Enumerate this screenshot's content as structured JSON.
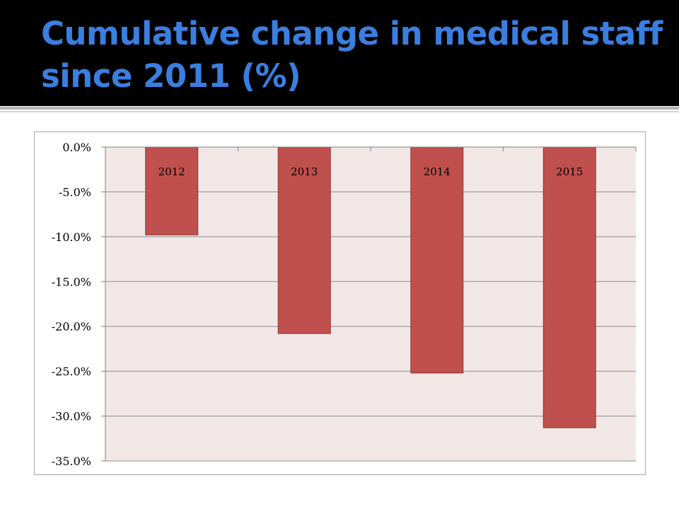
{
  "slide": {
    "title": "Cumulative change in medical staff since 2011 (%)"
  },
  "chart_data": {
    "type": "bar",
    "categories": [
      "2012",
      "2013",
      "2014",
      "2015"
    ],
    "values": [
      -9.8,
      -20.8,
      -25.2,
      -31.3
    ],
    "ylim": [
      -35,
      0
    ],
    "yticks": [
      0,
      -5,
      -10,
      -15,
      -20,
      -25,
      -30,
      -35
    ],
    "ytick_labels": [
      "0.0%",
      "-5.0%",
      "-10.0%",
      "-15.0%",
      "-20.0%",
      "-25.0%",
      "-30.0%",
      "-35.0%"
    ],
    "category_label_position": "inside-top",
    "grid": true,
    "legend": "none",
    "colors": {
      "bar": "#c0504d",
      "bar_edge": "#8c3836",
      "plot_background": "#f2e7e7",
      "gridline": "#8c8c8c",
      "title": "#3a7fe0",
      "header_background": "#000000"
    }
  }
}
